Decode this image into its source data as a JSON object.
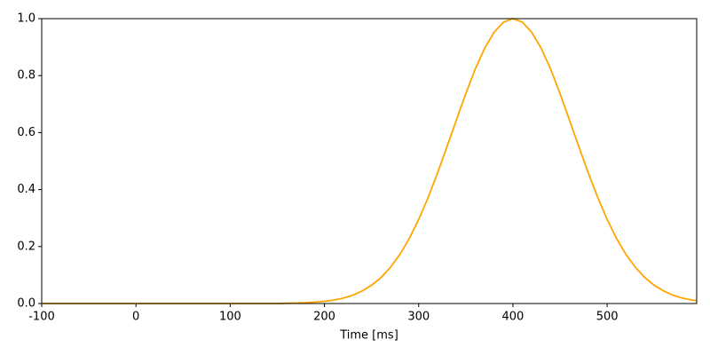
{
  "chart_data": {
    "type": "line",
    "xlabel": "Time [ms]",
    "x": [
      -100,
      0,
      100,
      150,
      160,
      170,
      180,
      190,
      200,
      210,
      220,
      230,
      240,
      250,
      260,
      270,
      280,
      290,
      300,
      310,
      320,
      330,
      340,
      350,
      360,
      370,
      380,
      390,
      400,
      410,
      420,
      430,
      440,
      450,
      460,
      470,
      480,
      490,
      500,
      510,
      520,
      530,
      540,
      550,
      560,
      570,
      580,
      590,
      595
    ],
    "series": [
      {
        "color": "#ffa500",
        "values": [
          0,
          0,
          0,
          0,
          0.001,
          0.002,
          0.003,
          0.005,
          0.008,
          0.012,
          0.019,
          0.029,
          0.044,
          0.064,
          0.091,
          0.127,
          0.172,
          0.228,
          0.295,
          0.372,
          0.458,
          0.55,
          0.644,
          0.737,
          0.823,
          0.896,
          0.952,
          0.988,
          1,
          0.988,
          0.952,
          0.896,
          0.823,
          0.737,
          0.644,
          0.55,
          0.458,
          0.372,
          0.295,
          0.228,
          0.172,
          0.127,
          0.091,
          0.064,
          0.044,
          0.029,
          0.019,
          0.012,
          0.01
        ]
      }
    ],
    "xlim": [
      -100,
      595
    ],
    "xticks": [
      -100,
      0,
      100,
      200,
      300,
      400,
      500
    ],
    "ylim": [
      0,
      1
    ],
    "yticks": [
      {
        "value": 0,
        "label": "0.0"
      },
      0.2,
      0.4,
      0.6,
      0.8,
      {
        "value": 1,
        "label": "1.0"
      }
    ]
  }
}
